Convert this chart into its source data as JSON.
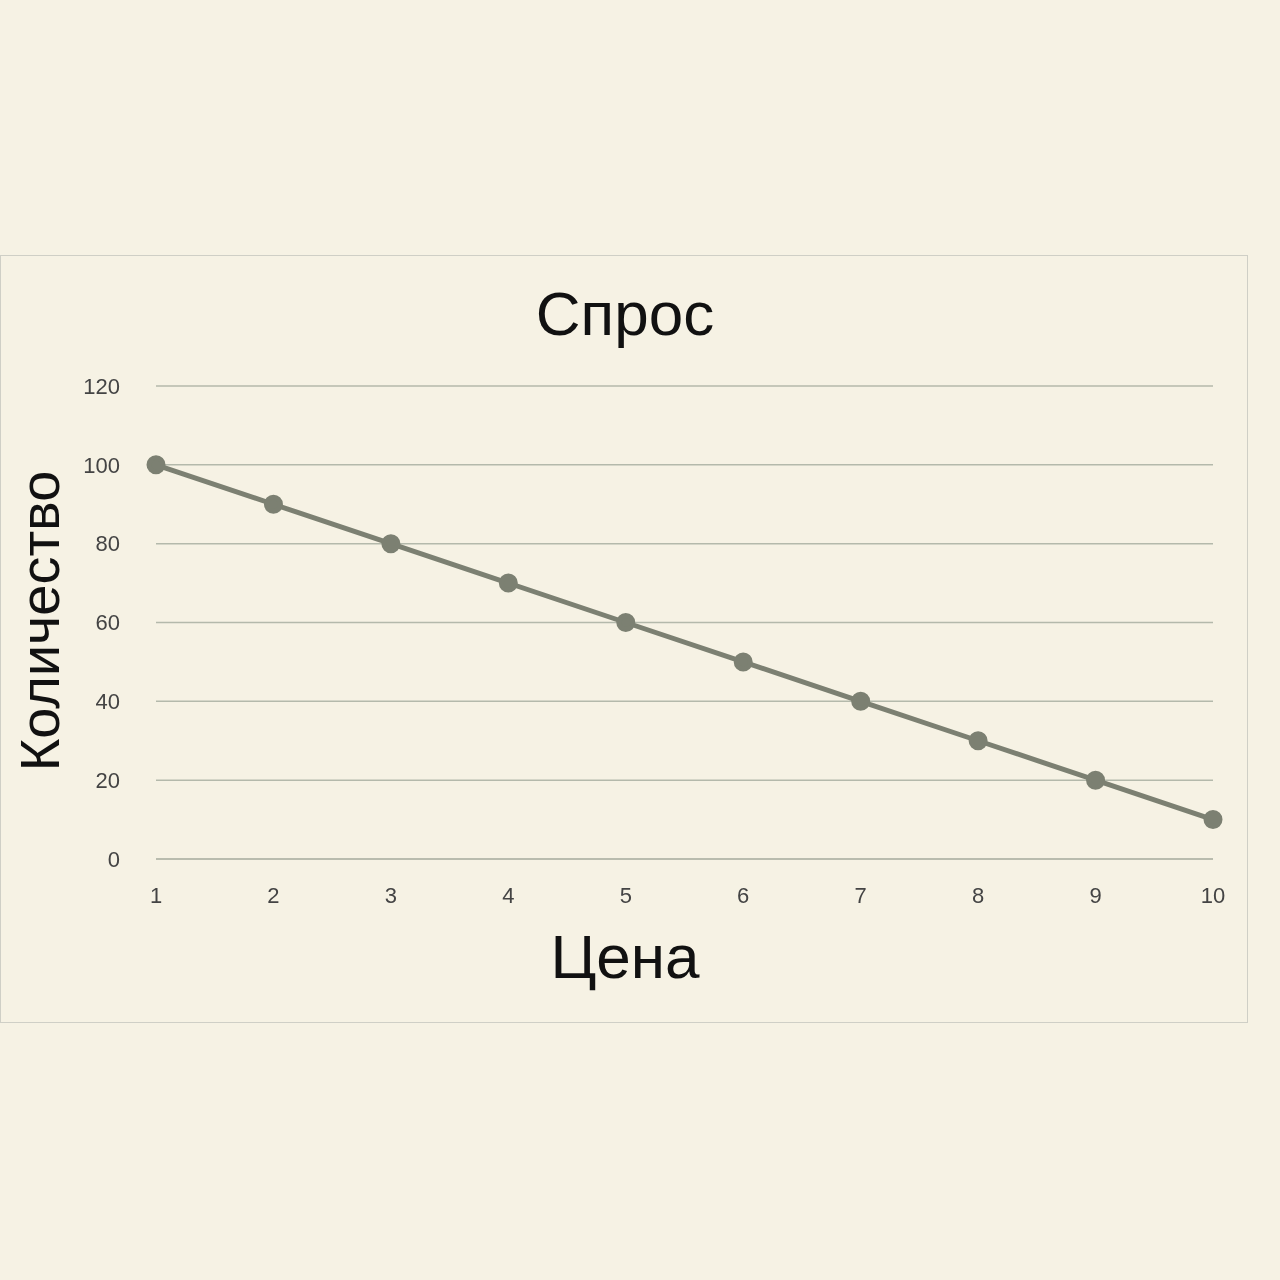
{
  "chart_data": {
    "type": "line",
    "title": "Спрос",
    "xlabel": "Цена",
    "ylabel": "Количество",
    "categories": [
      "1",
      "2",
      "3",
      "4",
      "5",
      "6",
      "7",
      "8",
      "9",
      "10"
    ],
    "series": [
      {
        "color": "#7c8072",
        "values": [
          100,
          90,
          80,
          70,
          60,
          50,
          40,
          30,
          20,
          10
        ]
      }
    ],
    "ylim": [
      0,
      120
    ],
    "yticks": [
      0,
      20,
      40,
      60,
      80,
      100,
      120
    ],
    "grid": "y",
    "marker": "circle",
    "legend": false
  }
}
